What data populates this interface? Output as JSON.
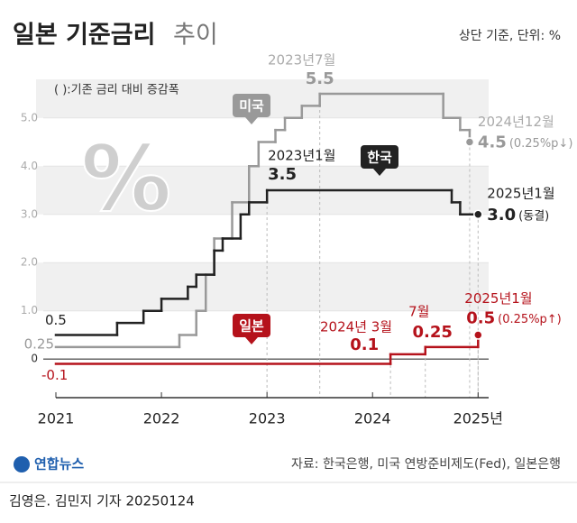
{
  "chart_data": {
    "type": "step",
    "title": "일본 기준금리",
    "title_suffix": "추이",
    "subtitle": "상단 기준, 단위: %",
    "note": "( ):기존 금리 대비 증감폭",
    "watermark": "%",
    "xlim": [
      2021,
      2025.1
    ],
    "xticks": [
      2021,
      2022,
      2023,
      2024,
      {
        "value": 2025,
        "label": "2025년"
      }
    ],
    "ylim": [
      -0.8,
      5.8
    ],
    "yticks": [
      0,
      {
        "value": 1,
        "label": "1.0"
      },
      {
        "value": 2,
        "label": "2.0"
      },
      {
        "value": 3,
        "label": "3.0"
      },
      {
        "value": 4,
        "label": "4.0"
      },
      {
        "value": 5,
        "label": "5.0"
      }
    ],
    "grid": true,
    "series": [
      {
        "name": "한국",
        "color": "#222222",
        "x": [
          2021,
          2021.58,
          2021.83,
          2022,
          2022.25,
          2022.33,
          2022.5,
          2022.58,
          2022.75,
          2022.83,
          2023,
          2024.75,
          2024.83,
          2025
        ],
        "values": [
          0.5,
          0.75,
          1,
          1.25,
          1.5,
          1.75,
          2.25,
          2.5,
          3,
          3.25,
          3.5,
          3.25,
          3,
          3
        ],
        "value_labels": [
          "0.5",
          null,
          null,
          null,
          null,
          null,
          null,
          null,
          null,
          null,
          "3.5",
          null,
          null,
          "3.0"
        ],
        "date_labels": [
          null,
          null,
          null,
          null,
          null,
          null,
          null,
          null,
          null,
          null,
          "2023년1월",
          null,
          null,
          "2025년1월"
        ],
        "note_labels": [
          null,
          null,
          null,
          null,
          null,
          null,
          null,
          null,
          null,
          null,
          null,
          null,
          null,
          "(동결)"
        ]
      },
      {
        "name": "미국",
        "color": "#999999",
        "x": [
          2021,
          2022.17,
          2022.33,
          2022.42,
          2022.5,
          2022.67,
          2022.83,
          2022.92,
          2023.08,
          2023.17,
          2023.33,
          2023.5,
          2024.67,
          2024.83,
          2024.92
        ],
        "values": [
          0.25,
          0.5,
          1,
          1.75,
          2.5,
          3.25,
          4,
          4.5,
          4.75,
          5,
          5.25,
          5.5,
          5,
          4.75,
          4.5
        ],
        "value_labels": [
          "0.25",
          null,
          null,
          null,
          null,
          null,
          null,
          null,
          null,
          null,
          null,
          "5.5",
          null,
          null,
          "4.5"
        ],
        "date_labels": [
          null,
          null,
          null,
          null,
          null,
          null,
          null,
          null,
          null,
          null,
          null,
          "2023년7월",
          null,
          null,
          "2024년12월"
        ],
        "note_labels": [
          null,
          null,
          null,
          null,
          null,
          null,
          null,
          null,
          null,
          null,
          null,
          null,
          null,
          null,
          "(0.25%p↓)"
        ]
      },
      {
        "name": "일본",
        "color": "#b5121b",
        "x": [
          2021,
          2024.17,
          2024.5,
          2025
        ],
        "values": [
          -0.1,
          0.1,
          0.25,
          0.5
        ],
        "value_labels": [
          "-0.1",
          "0.1",
          "0.25",
          "0.5"
        ],
        "date_labels": [
          null,
          "2024년 3월",
          "7월",
          "2025년1월"
        ],
        "note_labels": [
          null,
          null,
          null,
          "(0.25%p↑)"
        ]
      }
    ]
  },
  "source": "자료: 한국은행, 미국 연방준비제도(Fed), 일본은행",
  "logo": "연합뉴스",
  "credit": "김영은. 김민지 기자  20250124"
}
